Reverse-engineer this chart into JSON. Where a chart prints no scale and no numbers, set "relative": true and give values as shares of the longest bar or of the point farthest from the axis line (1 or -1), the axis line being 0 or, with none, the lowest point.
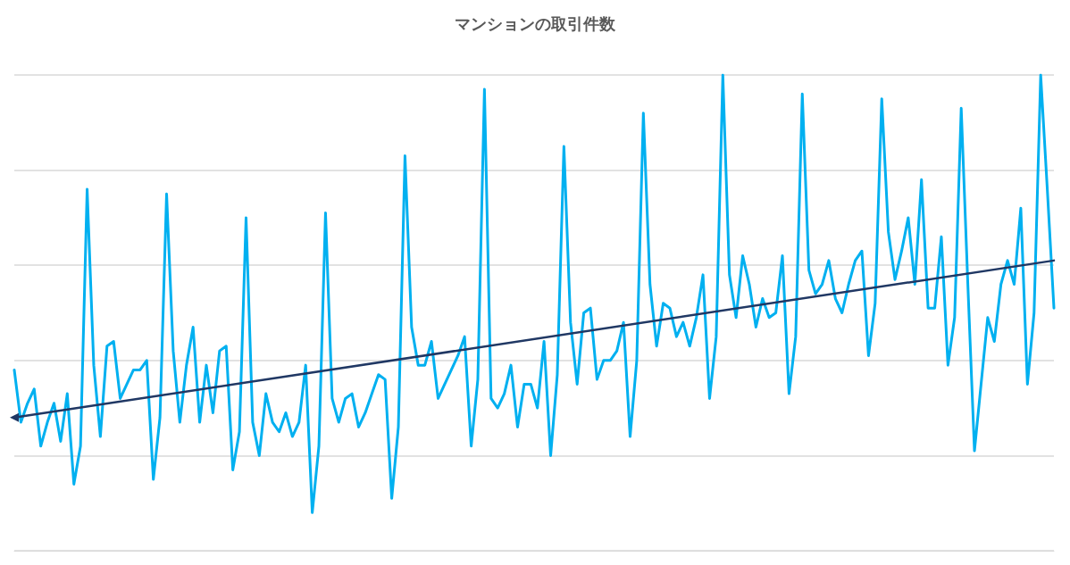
{
  "chart_data": {
    "type": "line",
    "title": "マンションの取引件数",
    "relative": true,
    "grid": "y",
    "line_style": "solid",
    "categories": [
      null,
      null,
      null,
      null,
      null,
      null,
      null,
      null,
      null,
      null,
      null,
      null,
      null,
      null,
      null,
      null,
      null,
      null,
      null,
      null,
      null,
      null,
      null,
      null,
      null,
      null,
      null,
      null,
      null,
      null,
      null,
      null,
      null,
      null,
      null,
      null,
      null,
      null,
      null,
      null,
      null,
      null,
      null,
      null,
      null,
      null,
      null,
      null,
      null,
      null,
      null,
      null,
      null,
      null,
      null,
      null,
      null,
      null,
      null,
      null,
      null,
      null,
      null,
      null,
      null,
      null,
      null,
      null,
      null,
      null,
      null,
      null,
      null,
      null,
      null,
      null,
      null,
      null,
      null,
      null,
      null,
      null,
      null,
      null,
      null,
      null,
      null,
      null,
      null,
      null,
      null,
      null,
      null,
      null,
      null,
      null,
      null,
      null,
      null,
      null,
      null,
      null,
      null,
      null,
      null,
      null,
      null,
      null,
      null,
      null,
      null,
      null,
      null,
      null,
      null,
      null,
      null,
      null,
      null,
      null,
      null,
      null,
      null,
      null,
      null,
      null,
      null,
      null,
      null,
      null,
      null,
      null,
      null,
      null,
      null,
      null,
      null,
      null,
      null,
      null,
      null,
      null,
      null,
      null,
      null,
      null,
      null,
      null,
      null,
      null,
      null,
      null,
      null,
      null,
      null,
      null,
      null,
      null
    ],
    "series": [
      {
        "color": "#00b0f0",
        "marker": "none",
        "values": [
          0.38,
          0.27,
          0.31,
          0.34,
          0.22,
          0.27,
          0.31,
          0.23,
          0.33,
          0.14,
          0.22,
          0.76,
          0.39,
          0.24,
          0.43,
          0.44,
          0.32,
          0.35,
          0.38,
          0.38,
          0.4,
          0.15,
          0.28,
          0.75,
          0.42,
          0.27,
          0.39,
          0.47,
          0.27,
          0.39,
          0.29,
          0.42,
          0.43,
          0.17,
          0.25,
          0.7,
          0.27,
          0.2,
          0.33,
          0.27,
          0.25,
          0.29,
          0.24,
          0.27,
          0.39,
          0.08,
          0.22,
          0.71,
          0.32,
          0.27,
          0.32,
          0.33,
          0.26,
          0.29,
          0.33,
          0.37,
          0.36,
          0.11,
          0.26,
          0.83,
          0.47,
          0.39,
          0.39,
          0.44,
          0.32,
          0.35,
          0.38,
          0.41,
          0.45,
          0.22,
          0.36,
          0.97,
          0.32,
          0.3,
          0.33,
          0.39,
          0.26,
          0.35,
          0.35,
          0.3,
          0.44,
          0.2,
          0.37,
          0.85,
          0.48,
          0.35,
          0.5,
          0.51,
          0.36,
          0.4,
          0.4,
          0.42,
          0.48,
          0.24,
          0.4,
          0.92,
          0.56,
          0.43,
          0.52,
          0.51,
          0.45,
          0.48,
          0.43,
          0.49,
          0.58,
          0.32,
          0.45,
          1.0,
          0.58,
          0.49,
          0.62,
          0.56,
          0.47,
          0.53,
          0.49,
          0.5,
          0.62,
          0.33,
          0.45,
          0.96,
          0.59,
          0.54,
          0.56,
          0.61,
          0.53,
          0.5,
          0.56,
          0.61,
          0.63,
          0.41,
          0.52,
          0.95,
          0.67,
          0.57,
          0.63,
          0.7,
          0.56,
          0.78,
          0.51,
          0.51,
          0.66,
          0.39,
          0.49,
          0.93,
          0.56,
          0.21,
          0.35,
          0.49,
          0.44,
          0.56,
          0.61,
          0.56,
          0.72,
          0.35,
          0.5,
          1.0,
          0.76,
          0.51
        ]
      },
      {
        "color": "#203864",
        "marker": "triangle",
        "values": [
          0.28,
          null,
          null,
          null,
          null,
          null,
          null,
          null,
          null,
          null,
          null,
          null,
          null,
          null,
          null,
          null,
          null,
          null,
          null,
          null,
          null,
          null,
          null,
          null,
          null,
          null,
          null,
          null,
          null,
          null,
          null,
          null,
          null,
          null,
          null,
          null,
          null,
          null,
          null,
          null,
          null,
          null,
          null,
          null,
          null,
          null,
          null,
          null,
          null,
          null,
          null,
          null,
          null,
          null,
          null,
          null,
          null,
          null,
          null,
          null,
          null,
          null,
          null,
          null,
          null,
          null,
          null,
          null,
          null,
          null,
          null,
          null,
          null,
          null,
          null,
          null,
          null,
          null,
          null,
          null,
          null,
          null,
          null,
          null,
          null,
          null,
          null,
          null,
          null,
          null,
          null,
          null,
          null,
          null,
          null,
          null,
          null,
          null,
          null,
          null,
          null,
          null,
          null,
          null,
          null,
          null,
          null,
          null,
          null,
          null,
          null,
          null,
          null,
          null,
          null,
          null,
          null,
          null,
          null,
          null,
          null,
          null,
          null,
          null,
          null,
          null,
          null,
          null,
          null,
          null,
          null,
          null,
          null,
          null,
          null,
          null,
          null,
          null,
          null,
          null,
          null,
          null,
          null,
          null,
          null,
          null,
          null,
          null,
          null,
          null,
          null,
          null,
          null,
          null,
          null,
          null,
          null,
          0.61
        ]
      }
    ]
  }
}
